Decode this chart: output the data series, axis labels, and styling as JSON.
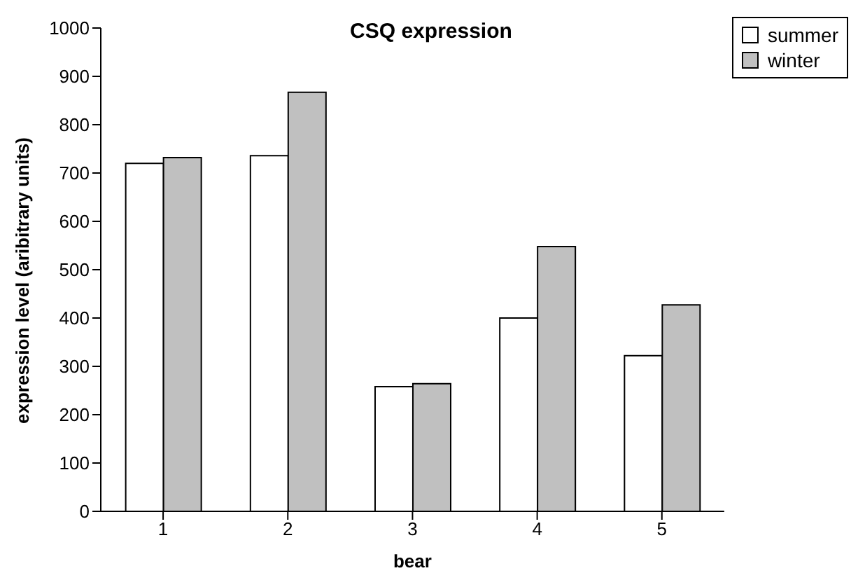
{
  "chart_data": {
    "type": "bar",
    "title": "CSQ expression",
    "xlabel": "bear",
    "ylabel": "expression level (aribitrary units)",
    "categories": [
      "1",
      "2",
      "3",
      "4",
      "5"
    ],
    "series": [
      {
        "name": "summer",
        "color": "#ffffff",
        "values": [
          720,
          736,
          258,
          400,
          322
        ]
      },
      {
        "name": "winter",
        "color": "#c0c0c0",
        "values": [
          732,
          867,
          264,
          548,
          427
        ]
      }
    ],
    "ylim": [
      0,
      1000
    ],
    "yticks": [
      0,
      100,
      200,
      300,
      400,
      500,
      600,
      700,
      800,
      900,
      1000
    ],
    "grid": false,
    "legend": "top right"
  }
}
